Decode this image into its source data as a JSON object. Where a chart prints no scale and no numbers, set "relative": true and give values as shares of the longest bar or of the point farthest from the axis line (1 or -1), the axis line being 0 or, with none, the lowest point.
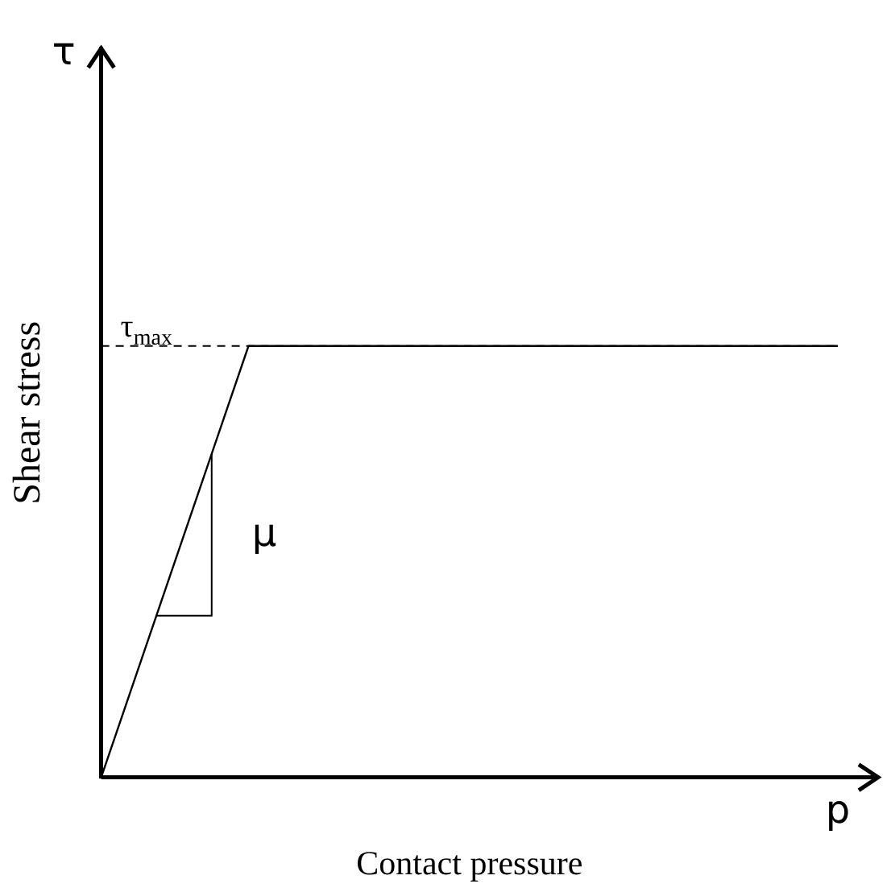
{
  "chart_data": {
    "type": "line",
    "relative": true,
    "xlabel": "Contact pressure",
    "ylabel": "Shear stress",
    "categories": [
      null,
      null,
      null,
      null,
      null,
      null
    ],
    "series": [
      {
        "color": "#000000",
        "values": [
          0,
          1,
          1,
          1,
          1,
          1
        ]
      }
    ],
    "ref_lines": [
      {
        "axis": "y",
        "value": 1,
        "label": "τ$_{max}$",
        "line_style": "dashed",
        "color": "#000000"
      }
    ],
    "annotations": [
      "τ",
      "p",
      "μ"
    ]
  }
}
